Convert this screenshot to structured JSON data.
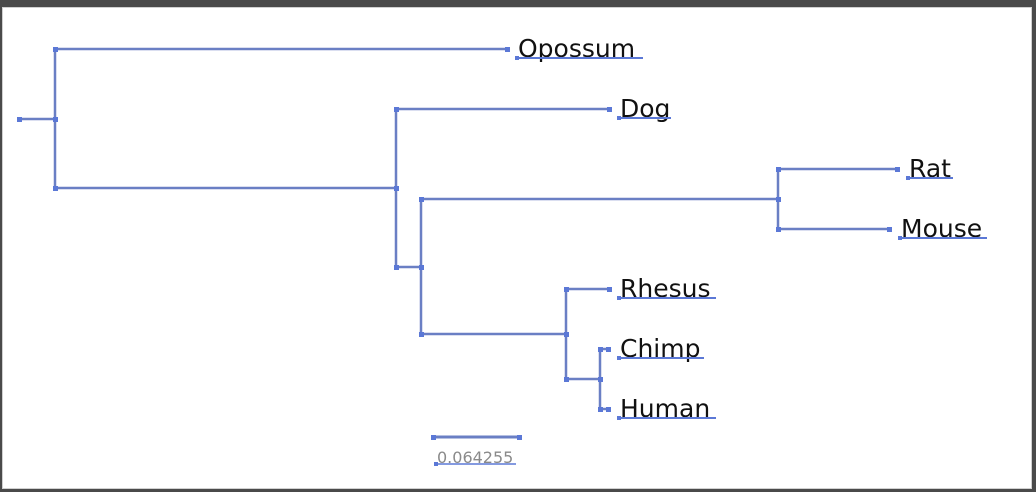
{
  "tree": {
    "leaves": {
      "opossum": "Opossum",
      "dog": "Dog",
      "rat": "Rat",
      "mouse": "Mouse",
      "rhesus": "Rhesus",
      "chimp": "Chimp",
      "human": "Human"
    },
    "scale_bar": {
      "label": "0.064255"
    }
  },
  "colors": {
    "branch": "#6a7fc4",
    "node": "#5b78d6",
    "label": "#111111",
    "scale_label": "#8a8a8a",
    "background": "#ffffff"
  }
}
